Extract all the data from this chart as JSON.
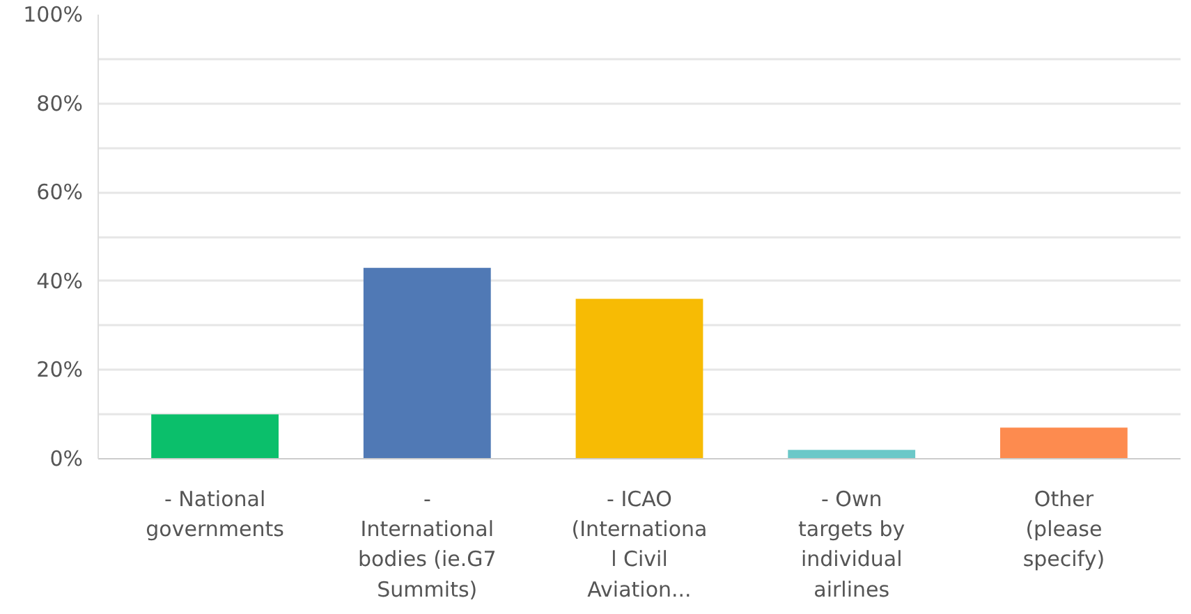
{
  "chart_data": {
    "type": "bar",
    "categories": [
      "- National\ngovernments",
      "-\nInternational\nbodies (ie.G7\nSummits)",
      "- ICAO\n(Internationa\nl Civil\nAviation...",
      "- Own\ntargets by\nindividual\nairlines",
      "Other\n(please\nspecify)"
    ],
    "values": [
      10,
      43,
      36,
      2,
      7
    ],
    "colors": [
      "#0bbf6b",
      "#5079b5",
      "#f7bb04",
      "#6bc8c8",
      "#fd8b4f"
    ],
    "ylim": [
      0,
      100
    ],
    "yticks": [
      {
        "value": 0,
        "label": "0%"
      },
      {
        "value": 10,
        "label": null
      },
      {
        "value": 20,
        "label": "20%"
      },
      {
        "value": 30,
        "label": null
      },
      {
        "value": 40,
        "label": "40%"
      },
      {
        "value": 50,
        "label": null
      },
      {
        "value": 60,
        "label": "60%"
      },
      {
        "value": 70,
        "label": null
      },
      {
        "value": 80,
        "label": "80%"
      },
      {
        "value": 90,
        "label": null
      },
      {
        "value": 100,
        "label": "100%"
      }
    ],
    "grid": "y"
  }
}
